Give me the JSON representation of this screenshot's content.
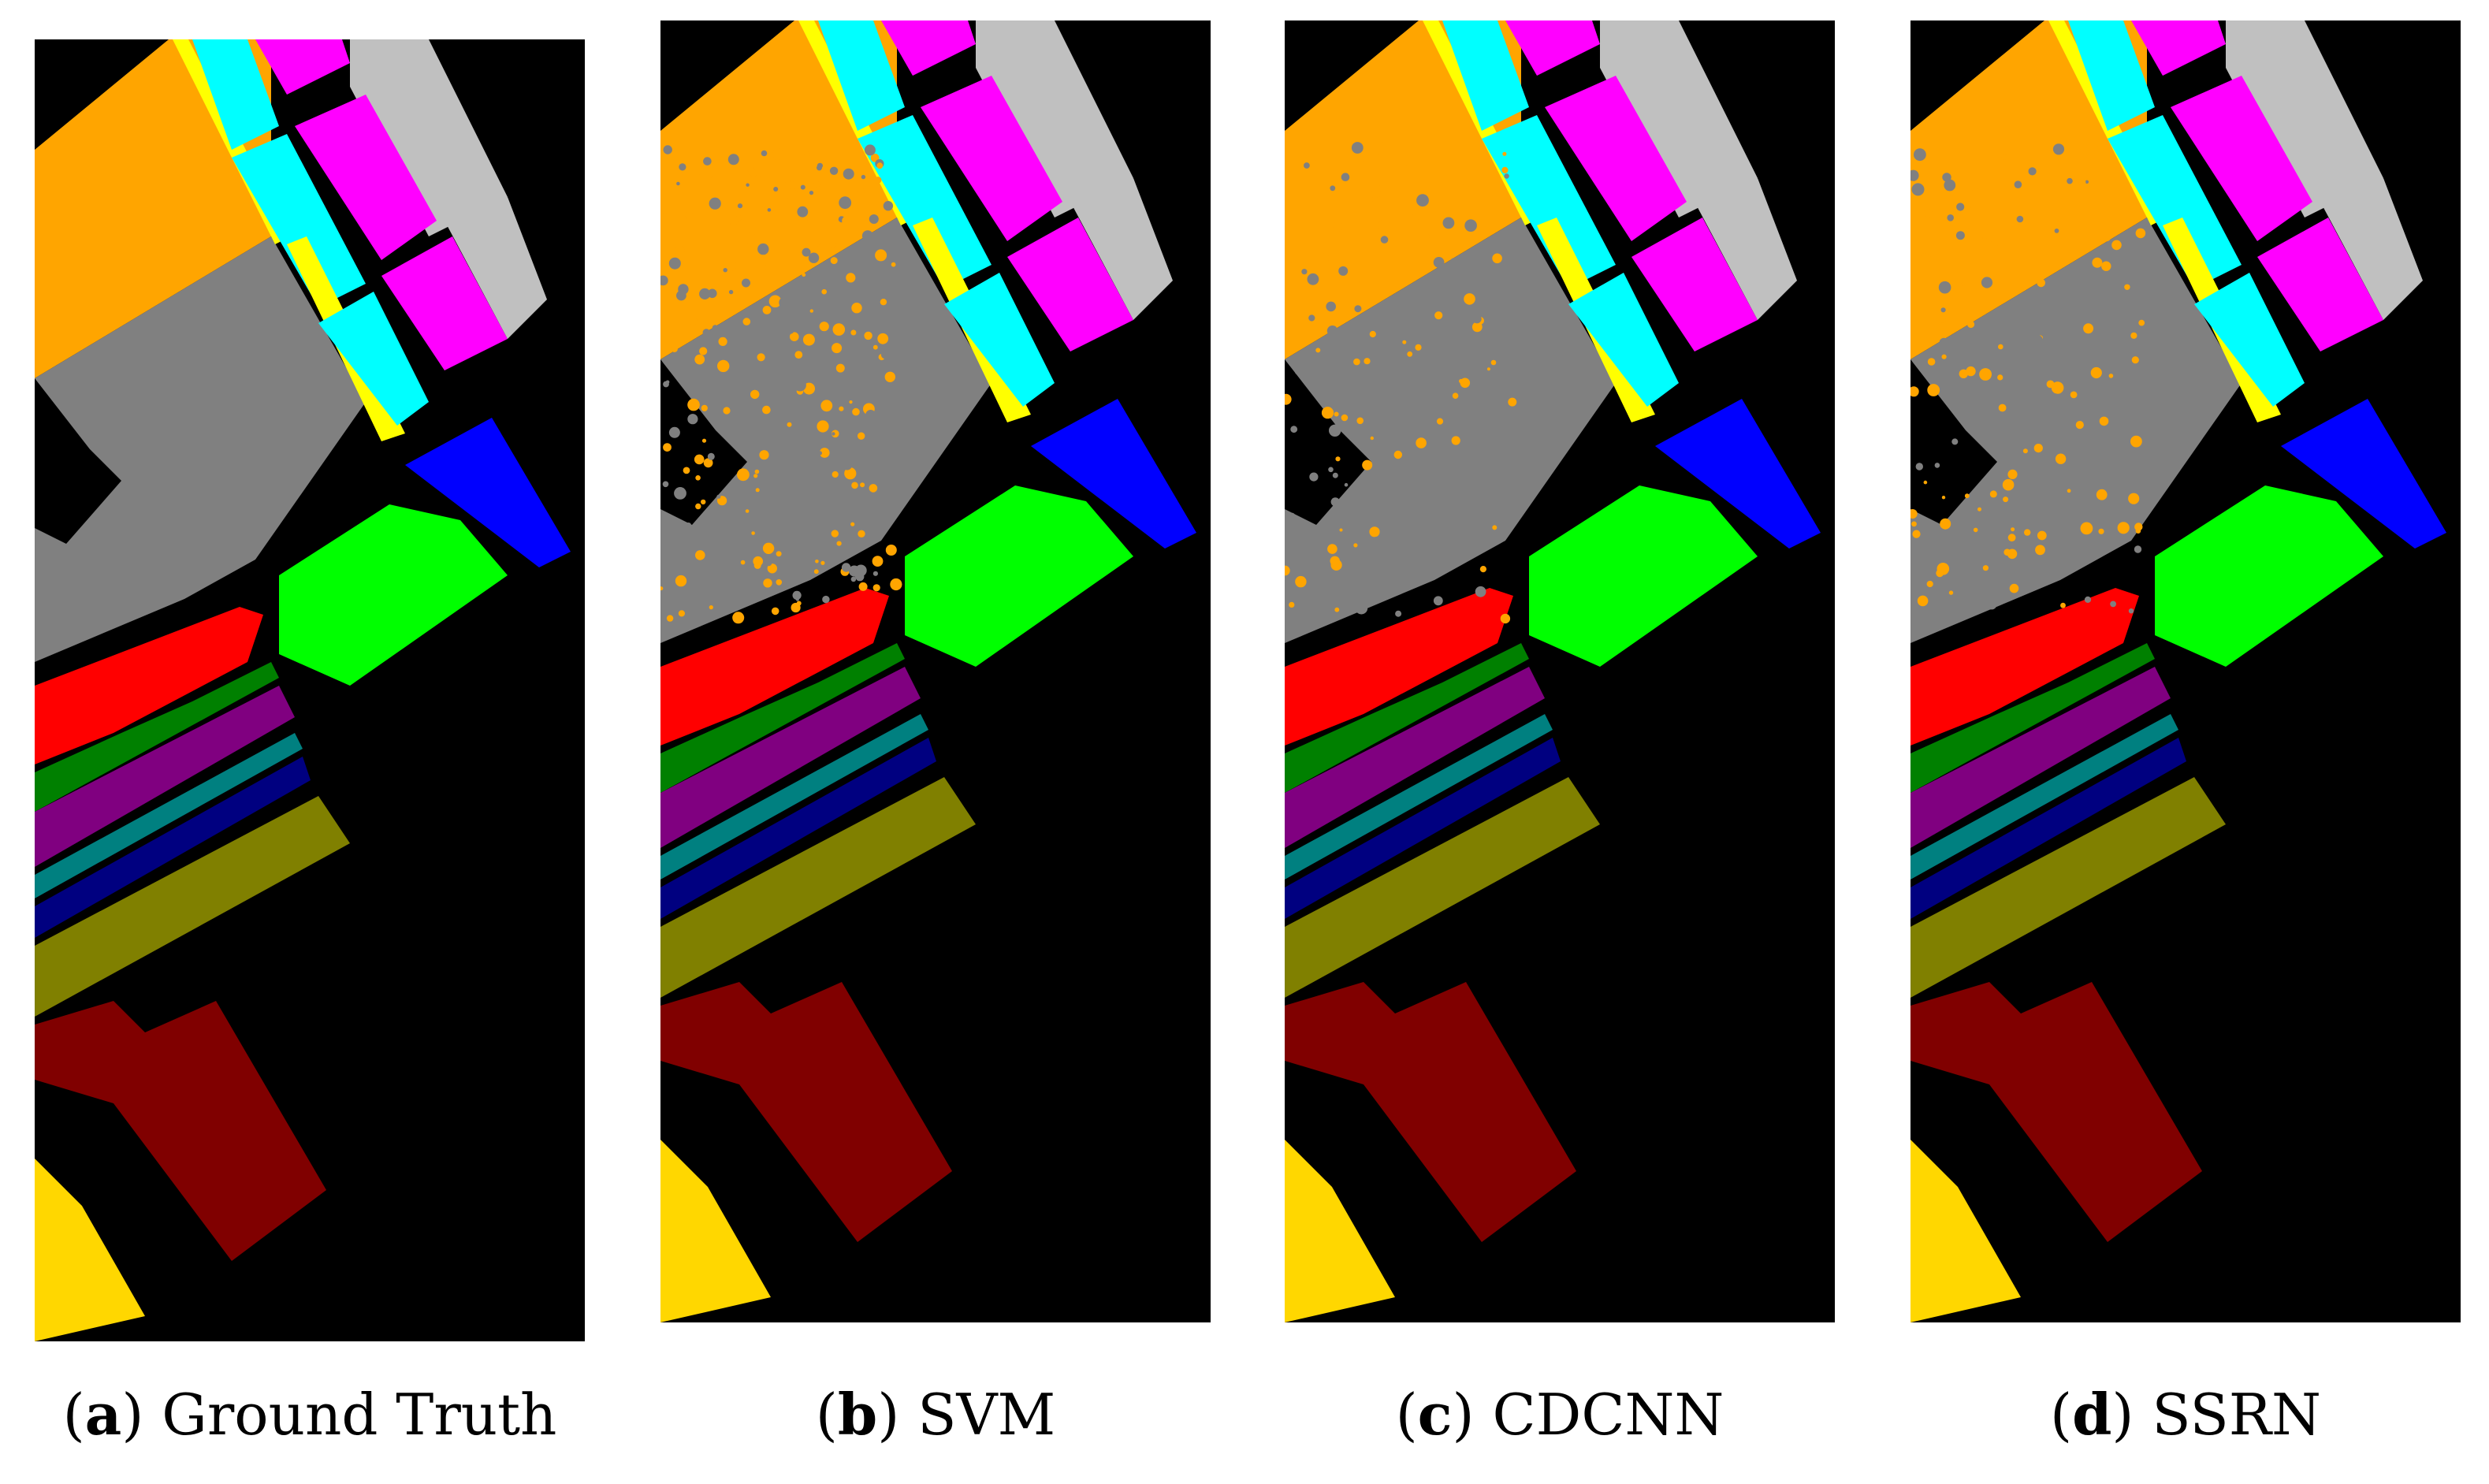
{
  "figure": {
    "panels": [
      {
        "id": "a",
        "label": "a",
        "title": "Ground Truth",
        "noise": 0.0
      },
      {
        "id": "b",
        "label": "b",
        "title": "SVM",
        "noise": 0.55
      },
      {
        "id": "c",
        "label": "c",
        "title": "CDCNN",
        "noise": 0.25
      },
      {
        "id": "d",
        "label": "d",
        "title": "SSRN",
        "noise": 0.3
      }
    ]
  },
  "colors": {
    "background": "#000000",
    "orange": "#ffa500",
    "gray": "#808080",
    "yellow": "#ffff00",
    "cyan": "#00ffff",
    "magenta": "#ff00ff",
    "lightgray": "#c0c0c0",
    "blue": "#0000ff",
    "green": "#00ff00",
    "red": "#ff0000",
    "darkgreen": "#008000",
    "purple": "#800080",
    "teal": "#008080",
    "navy": "#000080",
    "olive": "#808000",
    "maroon": "#800000",
    "gold": "#ffd700"
  }
}
